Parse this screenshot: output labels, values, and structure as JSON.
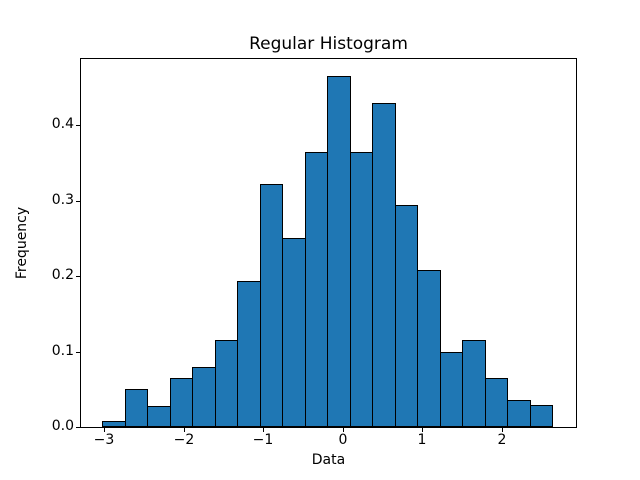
{
  "figure": {
    "background": "#ffffff"
  },
  "chart_data": {
    "type": "bar",
    "subtype": "histogram",
    "title": "Regular Histogram",
    "xlabel": "Data",
    "ylabel": "Frequency",
    "bar_color": "#1f77b4",
    "bar_edge_color": "#000000",
    "grid": false,
    "legend": null,
    "n_bins": 20,
    "bin_edges": [
      -3.02,
      -2.738,
      -2.455,
      -2.173,
      -1.89,
      -1.608,
      -1.325,
      -1.043,
      -0.76,
      -0.478,
      -0.195,
      0.088,
      0.37,
      0.653,
      0.935,
      1.218,
      1.5,
      1.783,
      2.065,
      2.348,
      2.63
    ],
    "values": [
      0.008,
      0.051,
      0.028,
      0.065,
      0.079,
      0.115,
      0.193,
      0.322,
      0.25,
      0.365,
      0.466,
      0.365,
      0.43,
      0.294,
      0.208,
      0.1,
      0.115,
      0.065,
      0.036,
      0.029
    ],
    "xlim": [
      -3.29,
      2.93
    ],
    "ylim": [
      0,
      0.488
    ],
    "xticks": [
      -3,
      -2,
      -1,
      0,
      1,
      2
    ],
    "xtick_labels": [
      "−3",
      "−2",
      "−1",
      "0",
      "1",
      "2"
    ],
    "yticks": [
      0.0,
      0.1,
      0.2,
      0.3,
      0.4
    ],
    "ytick_labels": [
      "0.0",
      "0.1",
      "0.2",
      "0.3",
      "0.4"
    ]
  }
}
